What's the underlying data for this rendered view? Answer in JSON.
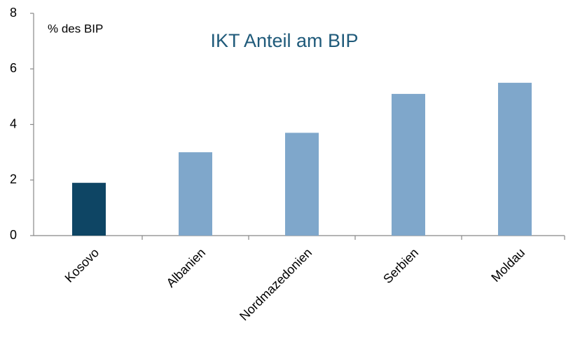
{
  "chart_data": {
    "type": "bar",
    "title": "IKT Anteil am BIP",
    "y_label": "% des BIP",
    "categories": [
      "Kosovo",
      "Albanien",
      "Nordmazedonien",
      "Serbien",
      "Moldau"
    ],
    "values": [
      1.9,
      3.0,
      3.7,
      5.1,
      5.5
    ],
    "colors": [
      "#0e4564",
      "#7fa7cb",
      "#7fa7cb",
      "#7fa7cb",
      "#7fa7cb"
    ],
    "ylim": [
      0,
      8
    ],
    "yticks": [
      0,
      2,
      4,
      6,
      8
    ],
    "grid": false
  }
}
